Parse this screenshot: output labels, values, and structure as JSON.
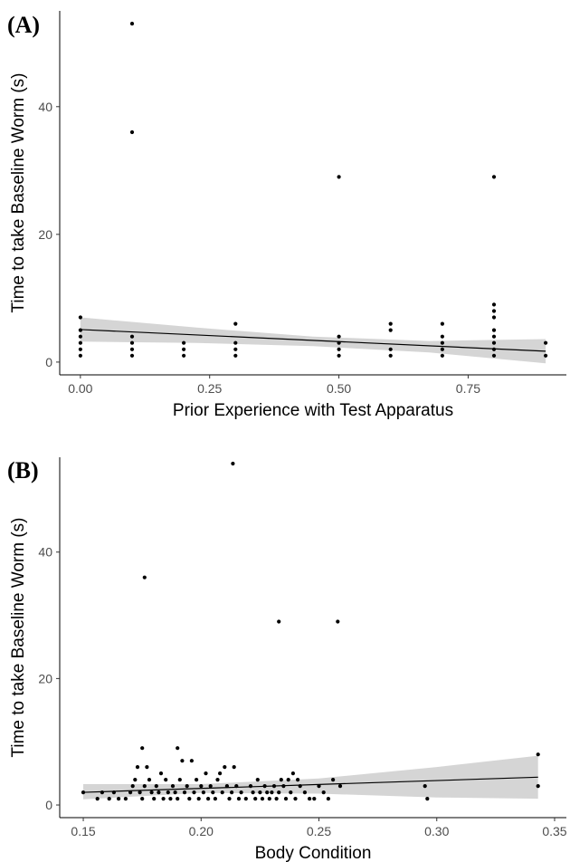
{
  "chart_data": [
    {
      "type": "scatter",
      "panel_label": "(A)",
      "xlabel": "Prior Experience with Test Apparatus",
      "ylabel": "Time to take Baseline Worm (s)",
      "xlim": [
        -0.04,
        0.94
      ],
      "ylim": [
        -2,
        55
      ],
      "xticks": [
        0.0,
        0.25,
        0.5,
        0.75
      ],
      "xtick_labels": [
        "0.00",
        "0.25",
        "0.50",
        "0.75"
      ],
      "yticks": [
        0,
        20,
        40
      ],
      "ytick_labels": [
        "0",
        "20",
        "40"
      ],
      "grid": false,
      "points": [
        [
          0.0,
          7
        ],
        [
          0.0,
          5
        ],
        [
          0.0,
          4
        ],
        [
          0.0,
          3
        ],
        [
          0.0,
          2
        ],
        [
          0.0,
          1
        ],
        [
          0.1,
          53
        ],
        [
          0.1,
          36
        ],
        [
          0.1,
          4
        ],
        [
          0.1,
          3
        ],
        [
          0.1,
          2
        ],
        [
          0.1,
          1
        ],
        [
          0.2,
          3
        ],
        [
          0.2,
          2
        ],
        [
          0.2,
          1
        ],
        [
          0.3,
          6
        ],
        [
          0.3,
          3
        ],
        [
          0.3,
          2
        ],
        [
          0.3,
          1
        ],
        [
          0.5,
          29
        ],
        [
          0.5,
          4
        ],
        [
          0.5,
          3
        ],
        [
          0.5,
          2
        ],
        [
          0.5,
          1
        ],
        [
          0.6,
          6
        ],
        [
          0.6,
          5
        ],
        [
          0.6,
          2
        ],
        [
          0.6,
          1
        ],
        [
          0.7,
          6
        ],
        [
          0.7,
          4
        ],
        [
          0.7,
          3
        ],
        [
          0.7,
          2
        ],
        [
          0.7,
          1
        ],
        [
          0.8,
          29
        ],
        [
          0.8,
          9
        ],
        [
          0.8,
          8
        ],
        [
          0.8,
          7
        ],
        [
          0.8,
          5
        ],
        [
          0.8,
          4
        ],
        [
          0.8,
          3
        ],
        [
          0.8,
          2
        ],
        [
          0.8,
          1
        ],
        [
          0.9,
          3
        ],
        [
          0.9,
          1
        ]
      ],
      "fit": {
        "x": [
          0.0,
          0.9
        ],
        "y": [
          5.1,
          1.7
        ]
      },
      "ci_band": {
        "x": [
          0.0,
          0.225,
          0.45,
          0.675,
          0.9
        ],
        "lower": [
          3.2,
          3.0,
          2.5,
          1.5,
          -0.2
        ],
        "upper": [
          7.0,
          5.4,
          4.0,
          3.3,
          3.6
        ]
      }
    },
    {
      "type": "scatter",
      "panel_label": "(B)",
      "xlabel": "Body Condition",
      "ylabel": "Time to take Baseline Worm (s)",
      "xlim": [
        0.14,
        0.355
      ],
      "ylim": [
        -2,
        55
      ],
      "xticks": [
        0.15,
        0.2,
        0.25,
        0.3,
        0.35
      ],
      "xtick_labels": [
        "0.15",
        "0.20",
        "0.25",
        "0.30",
        "0.35"
      ],
      "yticks": [
        0,
        20,
        40
      ],
      "ytick_labels": [
        "0",
        "20",
        "40"
      ],
      "grid": false,
      "points": [
        [
          0.15,
          2
        ],
        [
          0.156,
          1
        ],
        [
          0.158,
          2
        ],
        [
          0.161,
          1
        ],
        [
          0.163,
          2
        ],
        [
          0.165,
          1
        ],
        [
          0.168,
          1
        ],
        [
          0.17,
          2
        ],
        [
          0.171,
          3
        ],
        [
          0.172,
          4
        ],
        [
          0.173,
          6
        ],
        [
          0.174,
          2
        ],
        [
          0.175,
          9
        ],
        [
          0.175,
          1
        ],
        [
          0.176,
          36
        ],
        [
          0.176,
          3
        ],
        [
          0.177,
          6
        ],
        [
          0.178,
          4
        ],
        [
          0.179,
          2
        ],
        [
          0.18,
          1
        ],
        [
          0.181,
          3
        ],
        [
          0.182,
          2
        ],
        [
          0.183,
          5
        ],
        [
          0.184,
          1
        ],
        [
          0.185,
          4
        ],
        [
          0.186,
          2
        ],
        [
          0.187,
          1
        ],
        [
          0.188,
          3
        ],
        [
          0.189,
          2
        ],
        [
          0.19,
          9
        ],
        [
          0.19,
          1
        ],
        [
          0.191,
          4
        ],
        [
          0.192,
          7
        ],
        [
          0.193,
          2
        ],
        [
          0.194,
          3
        ],
        [
          0.195,
          1
        ],
        [
          0.196,
          7
        ],
        [
          0.197,
          2
        ],
        [
          0.198,
          4
        ],
        [
          0.199,
          1
        ],
        [
          0.2,
          3
        ],
        [
          0.201,
          2
        ],
        [
          0.202,
          5
        ],
        [
          0.203,
          1
        ],
        [
          0.204,
          3
        ],
        [
          0.205,
          2
        ],
        [
          0.206,
          1
        ],
        [
          0.207,
          4
        ],
        [
          0.208,
          5
        ],
        [
          0.209,
          2
        ],
        [
          0.21,
          6
        ],
        [
          0.211,
          3
        ],
        [
          0.212,
          1
        ],
        [
          0.213,
          2
        ],
        [
          0.2135,
          54
        ],
        [
          0.214,
          6
        ],
        [
          0.215,
          3
        ],
        [
          0.216,
          1
        ],
        [
          0.217,
          2
        ],
        [
          0.219,
          1
        ],
        [
          0.221,
          3
        ],
        [
          0.222,
          2
        ],
        [
          0.223,
          1
        ],
        [
          0.224,
          4
        ],
        [
          0.225,
          2
        ],
        [
          0.226,
          1
        ],
        [
          0.227,
          3
        ],
        [
          0.228,
          2
        ],
        [
          0.229,
          1
        ],
        [
          0.23,
          2
        ],
        [
          0.231,
          3
        ],
        [
          0.232,
          1
        ],
        [
          0.233,
          29
        ],
        [
          0.233,
          2
        ],
        [
          0.234,
          4
        ],
        [
          0.235,
          3
        ],
        [
          0.236,
          1
        ],
        [
          0.237,
          4
        ],
        [
          0.238,
          2
        ],
        [
          0.239,
          5
        ],
        [
          0.24,
          1
        ],
        [
          0.241,
          4
        ],
        [
          0.242,
          3
        ],
        [
          0.244,
          2
        ],
        [
          0.246,
          1
        ],
        [
          0.248,
          1
        ],
        [
          0.25,
          3
        ],
        [
          0.252,
          2
        ],
        [
          0.254,
          1
        ],
        [
          0.256,
          4
        ],
        [
          0.258,
          29
        ],
        [
          0.259,
          3
        ],
        [
          0.295,
          3
        ],
        [
          0.296,
          1
        ],
        [
          0.343,
          8
        ],
        [
          0.343,
          3
        ]
      ],
      "fit": {
        "x": [
          0.15,
          0.343
        ],
        "y": [
          2.0,
          4.4
        ]
      },
      "ci_band": {
        "x": [
          0.15,
          0.2,
          0.25,
          0.3,
          0.343
        ],
        "lower": [
          0.9,
          1.9,
          1.8,
          1.2,
          1.0
        ],
        "upper": [
          3.3,
          3.3,
          4.2,
          6.0,
          7.8
        ]
      }
    }
  ]
}
